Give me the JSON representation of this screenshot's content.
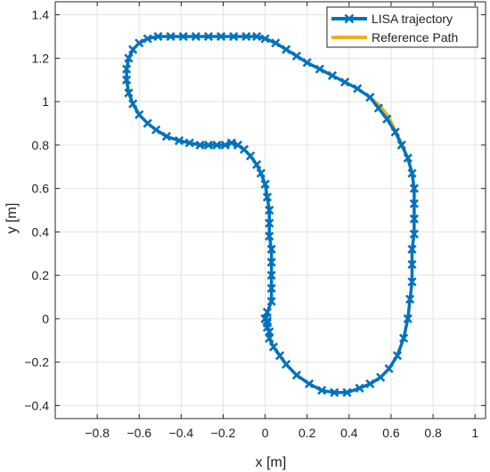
{
  "colors": {
    "trajectory": "#0072BD",
    "reference": "#EDB120",
    "grid": "#e3e3e3",
    "axis": "#262626"
  },
  "legend": {
    "placement": "top-right",
    "items": [
      {
        "label": "LISA trajectory",
        "marker": "x-marker",
        "color": "#0072BD"
      },
      {
        "label": "Reference Path",
        "color": "#EDB120"
      }
    ]
  },
  "chart_data": {
    "type": "line",
    "xlabel": "x [m]",
    "ylabel": "y [m]",
    "xlim": [
      -1.0,
      1.05
    ],
    "ylim": [
      -0.46,
      1.46
    ],
    "grid": true,
    "xticks": [
      -0.8,
      -0.6,
      -0.4,
      -0.2,
      0,
      0.2,
      0.4,
      0.6,
      0.8,
      1
    ],
    "xtick_labels": [
      "−0.8",
      "−0.6",
      "−0.4",
      "−0.2",
      "0",
      "0.2",
      "0.4",
      "0.6",
      "0.8",
      "1"
    ],
    "yticks": [
      -0.4,
      -0.2,
      0,
      0.2,
      0.4,
      0.6,
      0.8,
      1,
      1.2,
      1.4
    ],
    "ytick_labels": [
      "−0.4",
      "−0.2",
      "0",
      "0.2",
      "0.4",
      "0.6",
      "0.8",
      "1",
      "1.2",
      "1.4"
    ],
    "series": [
      {
        "name": "LISA trajectory",
        "x": [
          0.0,
          0.01,
          0.03,
          0.03,
          0.03,
          0.03,
          0.03,
          0.02,
          0.02,
          0.02,
          0.01,
          0.0,
          -0.02,
          -0.04,
          -0.07,
          -0.1,
          -0.13,
          -0.16,
          -0.19,
          -0.23,
          -0.27,
          -0.31,
          -0.36,
          -0.41,
          -0.47,
          -0.52,
          -0.56,
          -0.6,
          -0.63,
          -0.65,
          -0.66,
          -0.66,
          -0.65,
          -0.63,
          -0.6,
          -0.56,
          -0.51,
          -0.45,
          -0.39,
          -0.33,
          -0.27,
          -0.21,
          -0.15,
          -0.09,
          -0.04,
          0.0,
          0.05,
          0.1,
          0.15,
          0.2,
          0.26,
          0.32,
          0.38,
          0.44,
          0.5,
          0.54,
          0.58,
          0.62,
          0.65,
          0.68,
          0.7,
          0.71,
          0.71,
          0.71,
          0.71,
          0.7,
          0.7,
          0.7,
          0.69,
          0.68,
          0.66,
          0.63,
          0.59,
          0.55,
          0.5,
          0.45,
          0.39,
          0.33,
          0.27,
          0.21,
          0.15,
          0.1,
          0.07,
          0.04,
          0.02,
          0.02,
          0.01,
          0.01,
          0.01,
          0.0
        ],
        "y": [
          0.0,
          0.03,
          0.08,
          0.14,
          0.2,
          0.26,
          0.32,
          0.38,
          0.44,
          0.5,
          0.56,
          0.62,
          0.67,
          0.71,
          0.75,
          0.78,
          0.8,
          0.81,
          0.8,
          0.8,
          0.8,
          0.8,
          0.81,
          0.82,
          0.84,
          0.87,
          0.9,
          0.94,
          0.99,
          1.04,
          1.1,
          1.15,
          1.2,
          1.24,
          1.27,
          1.29,
          1.3,
          1.3,
          1.3,
          1.3,
          1.3,
          1.3,
          1.3,
          1.3,
          1.3,
          1.29,
          1.27,
          1.24,
          1.21,
          1.18,
          1.15,
          1.12,
          1.09,
          1.06,
          1.02,
          0.97,
          0.92,
          0.86,
          0.8,
          0.74,
          0.67,
          0.6,
          0.53,
          0.46,
          0.39,
          0.32,
          0.25,
          0.17,
          0.09,
          0.0,
          -0.09,
          -0.17,
          -0.23,
          -0.27,
          -0.3,
          -0.32,
          -0.34,
          -0.34,
          -0.33,
          -0.3,
          -0.26,
          -0.21,
          -0.17,
          -0.13,
          -0.09,
          -0.06,
          -0.04,
          -0.02,
          -0.01,
          0.0
        ]
      },
      {
        "name": "Reference Path",
        "x": [
          0.0,
          0.01,
          0.03,
          0.03,
          0.03,
          0.03,
          0.03,
          0.02,
          0.02,
          0.02,
          0.01,
          0.0,
          -0.02,
          -0.04,
          -0.07,
          -0.1,
          -0.13,
          -0.16,
          -0.19,
          -0.23,
          -0.27,
          -0.31,
          -0.36,
          -0.41,
          -0.47,
          -0.52,
          -0.56,
          -0.6,
          -0.63,
          -0.65,
          -0.66,
          -0.66,
          -0.65,
          -0.63,
          -0.6,
          -0.56,
          -0.51,
          -0.45,
          -0.39,
          -0.33,
          -0.27,
          -0.21,
          -0.15,
          -0.09,
          -0.04,
          0.0,
          0.05,
          0.1,
          0.15,
          0.2,
          0.26,
          0.32,
          0.38,
          0.44,
          0.5,
          0.55,
          0.59,
          0.62,
          0.65,
          0.68,
          0.7,
          0.71,
          0.71,
          0.71,
          0.71,
          0.7,
          0.7,
          0.7,
          0.69,
          0.68,
          0.66,
          0.63,
          0.59,
          0.55,
          0.5,
          0.45,
          0.39,
          0.33,
          0.27,
          0.21,
          0.15,
          0.1,
          0.07,
          0.04,
          0.02,
          0.02,
          0.01,
          0.01,
          0.01,
          0.0
        ],
        "y": [
          0.0,
          0.03,
          0.08,
          0.14,
          0.2,
          0.26,
          0.32,
          0.38,
          0.44,
          0.5,
          0.56,
          0.62,
          0.67,
          0.71,
          0.75,
          0.78,
          0.8,
          0.81,
          0.8,
          0.8,
          0.8,
          0.8,
          0.81,
          0.82,
          0.84,
          0.87,
          0.9,
          0.94,
          0.99,
          1.04,
          1.1,
          1.15,
          1.2,
          1.24,
          1.27,
          1.29,
          1.3,
          1.3,
          1.3,
          1.3,
          1.3,
          1.3,
          1.3,
          1.3,
          1.3,
          1.29,
          1.27,
          1.24,
          1.21,
          1.18,
          1.15,
          1.12,
          1.09,
          1.06,
          1.02,
          0.98,
          0.93,
          0.87,
          0.81,
          0.74,
          0.67,
          0.6,
          0.53,
          0.46,
          0.39,
          0.32,
          0.25,
          0.17,
          0.09,
          0.0,
          -0.09,
          -0.17,
          -0.23,
          -0.27,
          -0.3,
          -0.32,
          -0.34,
          -0.34,
          -0.33,
          -0.3,
          -0.26,
          -0.21,
          -0.17,
          -0.13,
          -0.09,
          -0.06,
          -0.04,
          -0.02,
          -0.01,
          0.0
        ]
      }
    ]
  }
}
